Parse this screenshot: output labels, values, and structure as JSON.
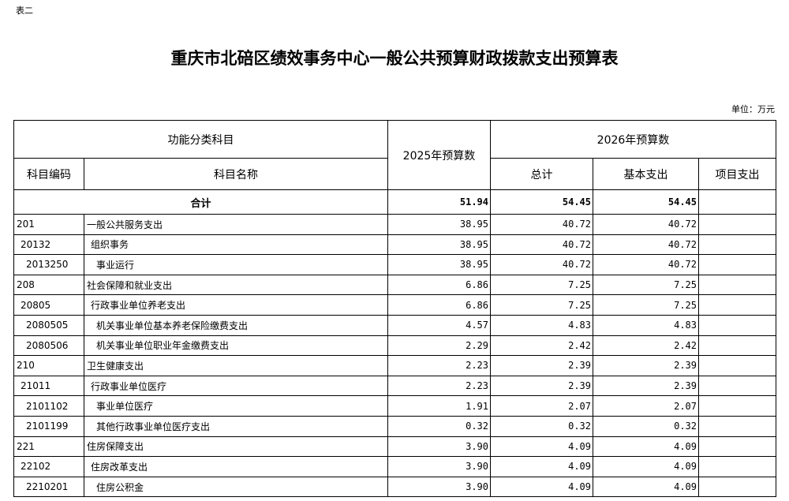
{
  "doc_label": "表二",
  "title": "重庆市北碚区绩效事务中心一般公共预算财政拨款支出预算表",
  "unit": "单位：万元",
  "headers": {
    "func": "功能分类科目",
    "b2025": "2025年预算数",
    "b2026": "2026年预算数",
    "code": "科目编码",
    "name": "科目名称",
    "total": "总计",
    "basic": "基本支出",
    "project": "项目支出"
  },
  "total_row": {
    "label": "合计",
    "b2025": "51.94",
    "total": "54.45",
    "basic": "54.45",
    "project": ""
  },
  "rows": [
    {
      "code": "201",
      "name": "一般公共服务支出",
      "level": 1,
      "b2025": "38.95",
      "total": "40.72",
      "basic": "40.72",
      "project": ""
    },
    {
      "code": "20132",
      "name": "组织事务",
      "level": 2,
      "b2025": "38.95",
      "total": "40.72",
      "basic": "40.72",
      "project": ""
    },
    {
      "code": "2013250",
      "name": "事业运行",
      "level": 3,
      "b2025": "38.95",
      "total": "40.72",
      "basic": "40.72",
      "project": ""
    },
    {
      "code": "208",
      "name": "社会保障和就业支出",
      "level": 1,
      "b2025": "6.86",
      "total": "7.25",
      "basic": "7.25",
      "project": ""
    },
    {
      "code": "20805",
      "name": "行政事业单位养老支出",
      "level": 2,
      "b2025": "6.86",
      "total": "7.25",
      "basic": "7.25",
      "project": ""
    },
    {
      "code": "2080505",
      "name": "机关事业单位基本养老保险缴费支出",
      "level": 3,
      "b2025": "4.57",
      "total": "4.83",
      "basic": "4.83",
      "project": ""
    },
    {
      "code": "2080506",
      "name": "机关事业单位职业年金缴费支出",
      "level": 3,
      "b2025": "2.29",
      "total": "2.42",
      "basic": "2.42",
      "project": ""
    },
    {
      "code": "210",
      "name": "卫生健康支出",
      "level": 1,
      "b2025": "2.23",
      "total": "2.39",
      "basic": "2.39",
      "project": ""
    },
    {
      "code": "21011",
      "name": "行政事业单位医疗",
      "level": 2,
      "b2025": "2.23",
      "total": "2.39",
      "basic": "2.39",
      "project": ""
    },
    {
      "code": "2101102",
      "name": "事业单位医疗",
      "level": 3,
      "b2025": "1.91",
      "total": "2.07",
      "basic": "2.07",
      "project": ""
    },
    {
      "code": "2101199",
      "name": "其他行政事业单位医疗支出",
      "level": 3,
      "b2025": "0.32",
      "total": "0.32",
      "basic": "0.32",
      "project": ""
    },
    {
      "code": "221",
      "name": "住房保障支出",
      "level": 1,
      "b2025": "3.90",
      "total": "4.09",
      "basic": "4.09",
      "project": ""
    },
    {
      "code": "22102",
      "name": "住房改革支出",
      "level": 2,
      "b2025": "3.90",
      "total": "4.09",
      "basic": "4.09",
      "project": ""
    },
    {
      "code": "2210201",
      "name": "住房公积金",
      "level": 3,
      "b2025": "3.90",
      "total": "4.09",
      "basic": "4.09",
      "project": ""
    }
  ]
}
